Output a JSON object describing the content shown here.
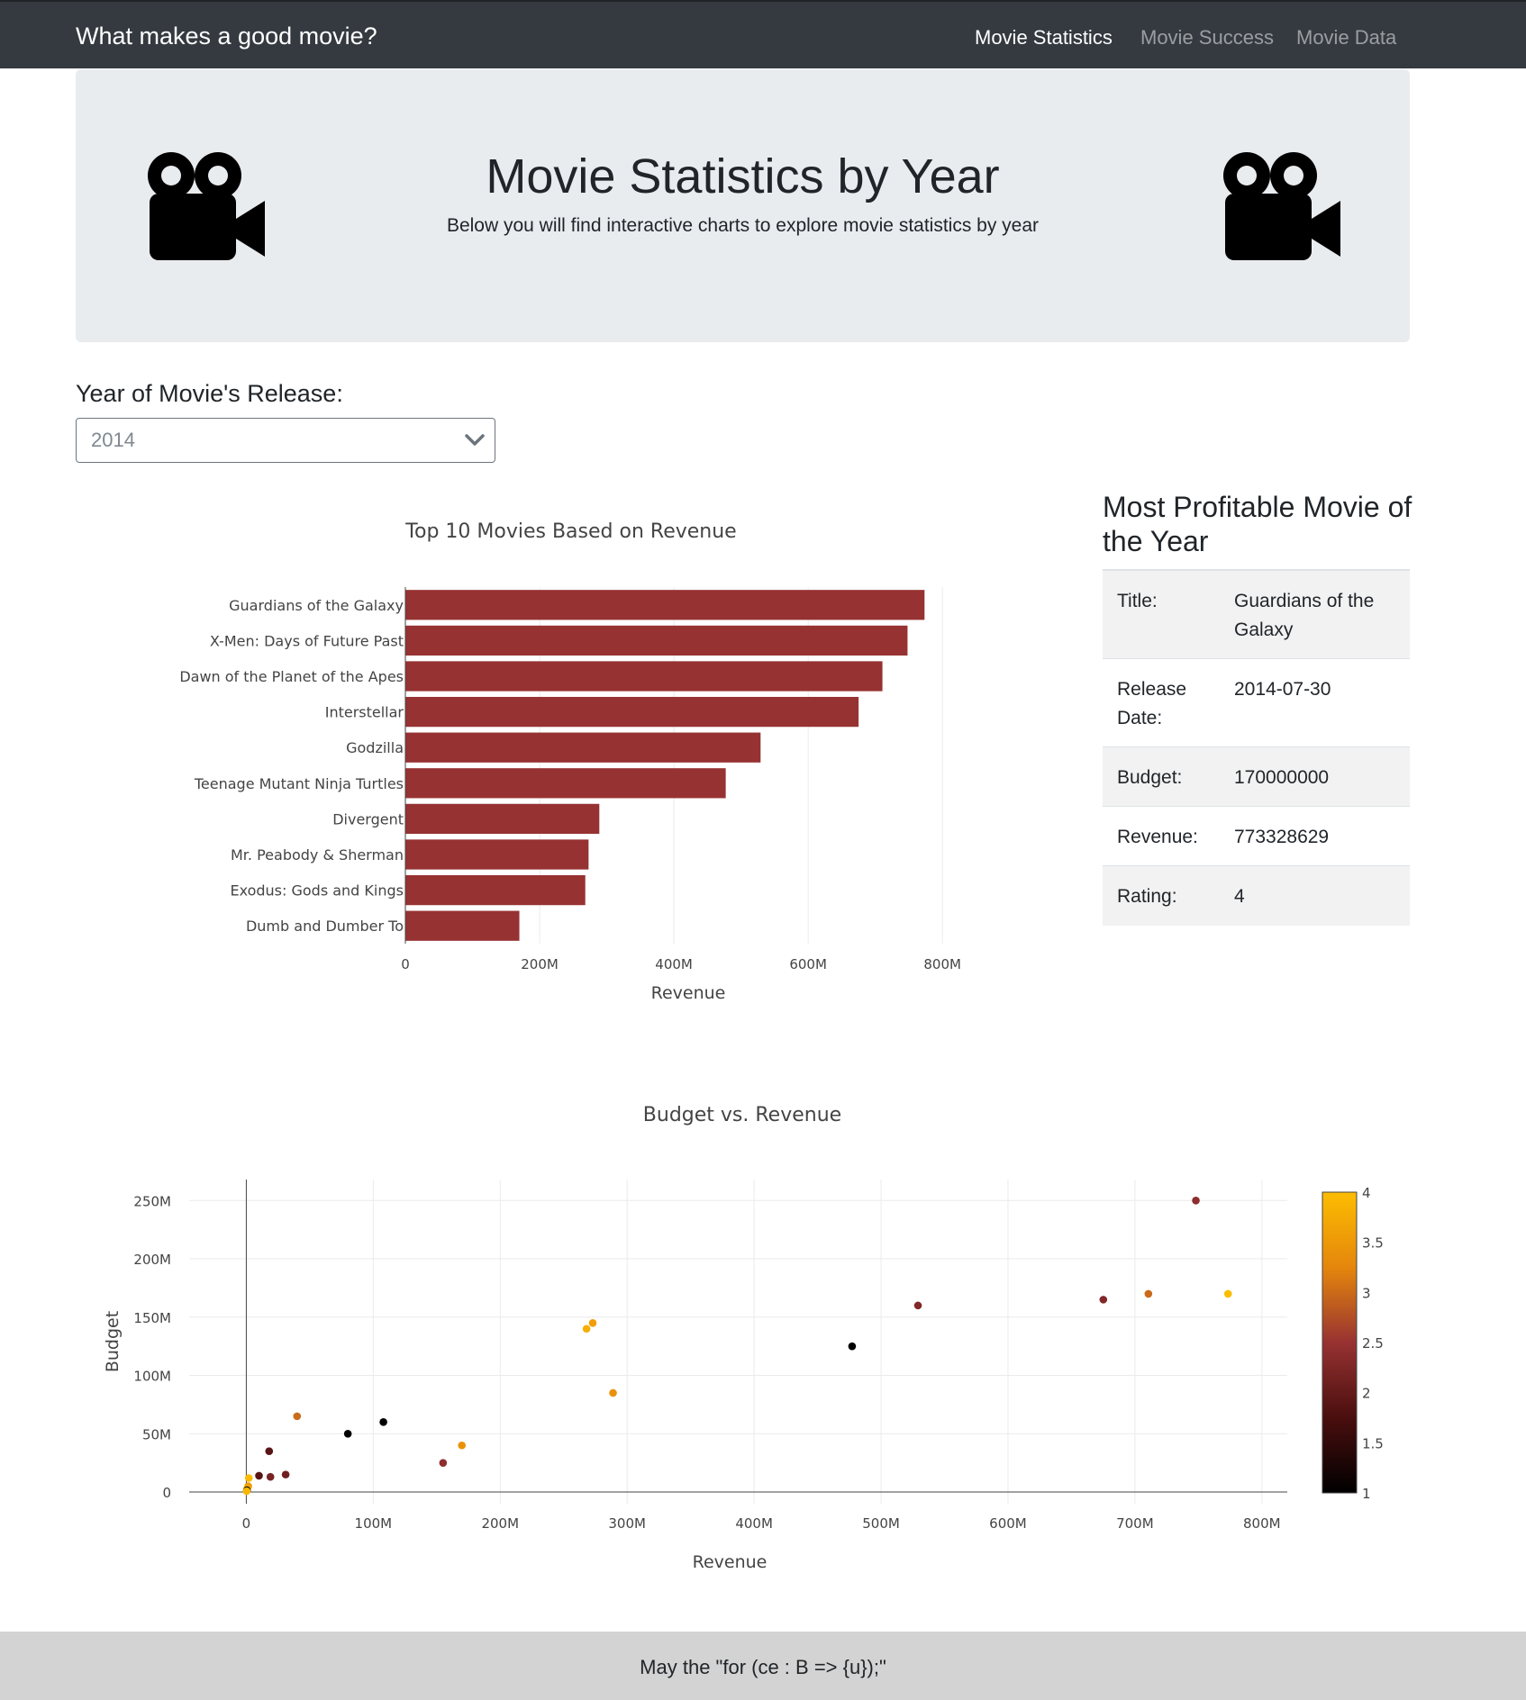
{
  "navbar": {
    "brand": "What makes a good movie?",
    "links": [
      "Movie Statistics",
      "Movie Success",
      "Movie Data"
    ],
    "active": "Movie Statistics"
  },
  "jumbotron": {
    "title": "Movie Statistics by Year",
    "subtitle": "Below you will find interactive charts to explore movie statistics by year",
    "icons": [
      "video-camera-icon",
      "video-camera-icon"
    ]
  },
  "year_filter": {
    "label": "Year of Movie's Release:",
    "selected": "2014"
  },
  "profitable": {
    "heading": "Most Profitable Movie of the Year",
    "rows": [
      {
        "key": "Title:",
        "value": "Guardians of the Galaxy"
      },
      {
        "key": "Release Date:",
        "value": "2014-07-30"
      },
      {
        "key": "Budget:",
        "value": "170000000"
      },
      {
        "key": "Revenue:",
        "value": "773328629"
      },
      {
        "key": "Rating:",
        "value": "4"
      }
    ]
  },
  "chart_data": [
    {
      "type": "bar",
      "orientation": "horizontal",
      "title": "Top 10 Movies Based on Revenue",
      "xlabel": "Revenue",
      "ylabel": "",
      "categories": [
        "Guardians of the Galaxy",
        "X-Men: Days of Future Past",
        "Dawn of the Planet of the Apes",
        "Interstellar",
        "Godzilla",
        "Teenage Mutant Ninja Turtles",
        "Divergent",
        "Mr. Peabody & Sherman",
        "Exodus: Gods and Kings",
        "Dumb and Dumber To"
      ],
      "values": [
        773328629,
        748000000,
        710600000,
        675100000,
        529100000,
        477200000,
        288900000,
        272900000,
        268000000,
        169800000
      ],
      "xlim": [
        0,
        840000000
      ],
      "xticks": [
        0,
        200000000,
        400000000,
        600000000,
        800000000
      ],
      "xtick_labels": [
        "0",
        "200M",
        "400M",
        "600M",
        "800M"
      ],
      "bar_color": "#973232",
      "grid": true
    },
    {
      "type": "scatter",
      "title": "Budget vs. Revenue",
      "xlabel": "Revenue",
      "ylabel": "Budget",
      "xlim": [
        -45000000,
        820000000
      ],
      "ylim": [
        -10000000,
        268000000
      ],
      "xticks": [
        0,
        100000000,
        200000000,
        300000000,
        400000000,
        500000000,
        600000000,
        700000000,
        800000000
      ],
      "xtick_labels": [
        "0",
        "100M",
        "200M",
        "300M",
        "400M",
        "500M",
        "600M",
        "700M",
        "800M"
      ],
      "yticks": [
        0,
        50000000,
        100000000,
        150000000,
        200000000,
        250000000
      ],
      "ytick_labels": [
        "0",
        "50M",
        "100M",
        "150M",
        "200M",
        "250M"
      ],
      "colorbar": {
        "min": 1,
        "max": 4,
        "ticks": [
          1,
          1.5,
          2,
          2.5,
          3,
          3.5,
          4
        ],
        "tick_labels": [
          "1",
          "1.5",
          "2",
          "2.5",
          "3",
          "3.5",
          "4"
        ],
        "colorscale": [
          "#000000",
          "#4a0e0e",
          "#973232",
          "#e5860c",
          "#fcbd01"
        ]
      },
      "grid": true,
      "points": [
        {
          "x": 773328629,
          "y": 170000000,
          "c": 4
        },
        {
          "x": 748000000,
          "y": 250000000,
          "c": 2.4
        },
        {
          "x": 710600000,
          "y": 170000000,
          "c": 3
        },
        {
          "x": 675100000,
          "y": 165000000,
          "c": 2.3
        },
        {
          "x": 529100000,
          "y": 160000000,
          "c": 2.3
        },
        {
          "x": 477200000,
          "y": 125000000,
          "c": 1
        },
        {
          "x": 288900000,
          "y": 85000000,
          "c": 3.4
        },
        {
          "x": 272900000,
          "y": 145000000,
          "c": 3.6
        },
        {
          "x": 268000000,
          "y": 140000000,
          "c": 3.8
        },
        {
          "x": 169800000,
          "y": 40000000,
          "c": 3.4
        },
        {
          "x": 155000000,
          "y": 25000000,
          "c": 2.4
        },
        {
          "x": 108000000,
          "y": 60000000,
          "c": 1
        },
        {
          "x": 80000000,
          "y": 50000000,
          "c": 1
        },
        {
          "x": 40000000,
          "y": 65000000,
          "c": 3
        },
        {
          "x": 31000000,
          "y": 15000000,
          "c": 2.1
        },
        {
          "x": 19000000,
          "y": 13000000,
          "c": 2.2
        },
        {
          "x": 18000000,
          "y": 35000000,
          "c": 1.9
        },
        {
          "x": 10000000,
          "y": 14000000,
          "c": 1.9
        },
        {
          "x": 2000000,
          "y": 12000000,
          "c": 4
        },
        {
          "x": 1500000,
          "y": 5000000,
          "c": 3.5
        },
        {
          "x": 800000,
          "y": 3000000,
          "c": 3.8
        },
        {
          "x": 500000,
          "y": 1500000,
          "c": 1
        },
        {
          "x": 300000,
          "y": 800000,
          "c": 3.9
        }
      ]
    }
  ],
  "footer": {
    "text": "May the \"for (ce : B => {u});\""
  }
}
